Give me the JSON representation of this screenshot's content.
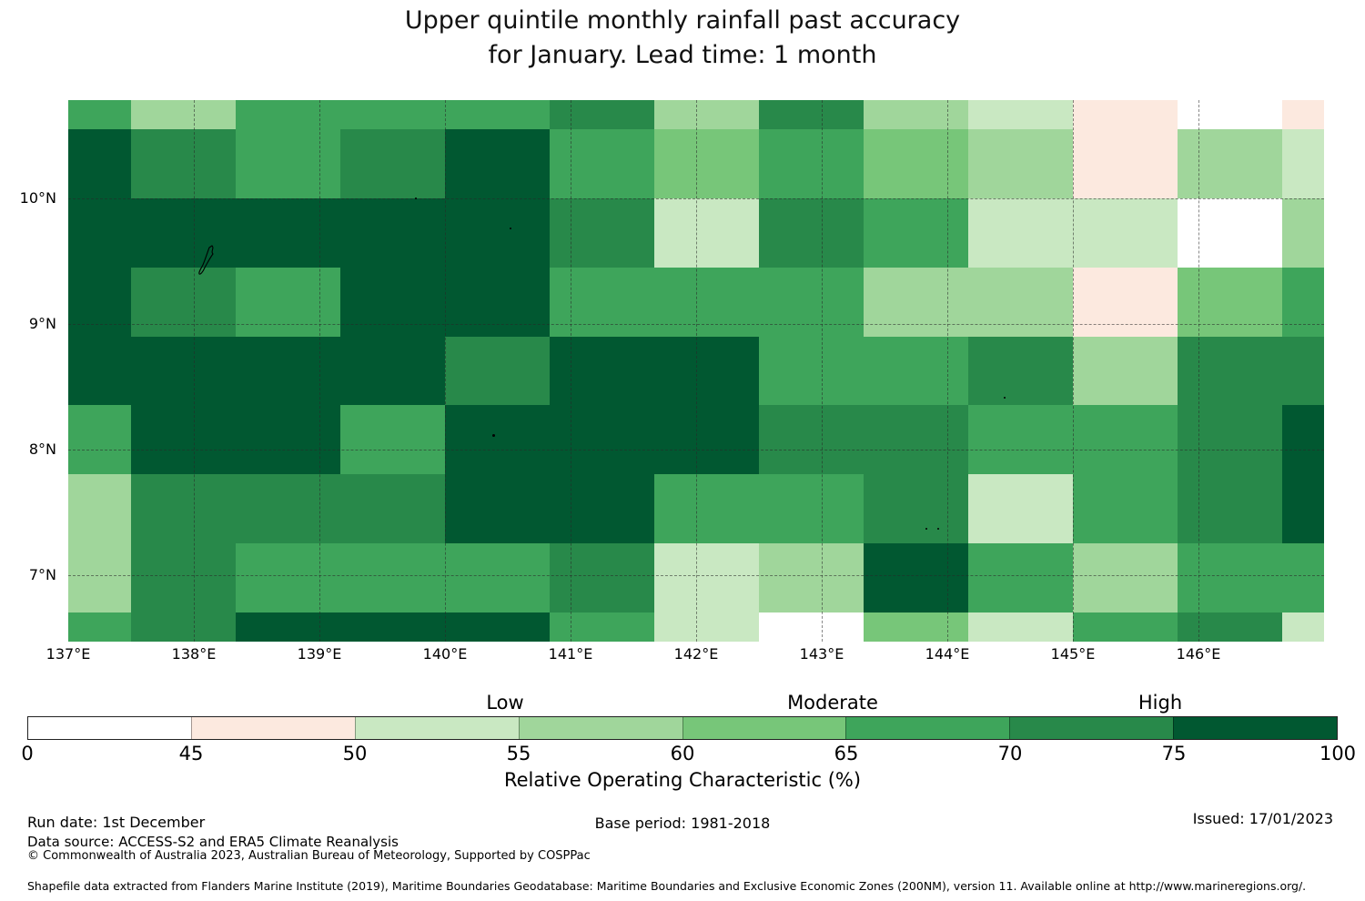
{
  "title": {
    "line1": "Upper quintile monthly rainfall past accuracy",
    "line2": "for January. Lead time: 1 month"
  },
  "chart_data": {
    "type": "heatmap",
    "title": "Upper quintile monthly rainfall past accuracy for January. Lead time: 1 month",
    "x_axis": {
      "ticks": [
        {
          "label": "137°E",
          "lon": 137
        },
        {
          "label": "138°E",
          "lon": 138
        },
        {
          "label": "139°E",
          "lon": 139
        },
        {
          "label": "140°E",
          "lon": 140
        },
        {
          "label": "141°E",
          "lon": 141
        },
        {
          "label": "142°E",
          "lon": 142
        },
        {
          "label": "143°E",
          "lon": 143
        },
        {
          "label": "144°E",
          "lon": 144
        },
        {
          "label": "145°E",
          "lon": 145
        },
        {
          "label": "146°E",
          "lon": 146
        }
      ]
    },
    "y_axis": {
      "ticks": [
        {
          "label": "10°N",
          "lat": 10
        },
        {
          "label": "9°N",
          "lat": 9
        },
        {
          "label": "8°N",
          "lat": 8
        },
        {
          "label": "7°N",
          "lat": 7
        }
      ]
    },
    "grid_on": true,
    "map_extent": {
      "lon_min": 137.0,
      "lon_max": 147.0,
      "lat_min": 6.47,
      "lat_max": 10.78
    },
    "lon_edges": [
      137.0,
      137.5,
      138.33,
      139.17,
      140.0,
      140.83,
      141.67,
      142.5,
      143.33,
      144.17,
      145.0,
      145.83,
      146.67,
      147.0
    ],
    "lat_edges": [
      10.78,
      10.55,
      10.0,
      9.45,
      8.9,
      8.35,
      7.8,
      7.25,
      6.7,
      6.47
    ],
    "legend_buckets": {
      "W": {
        "range": "0-45",
        "value": 40,
        "color": "#ffffff"
      },
      "PK": {
        "range": "45-50",
        "value": 47.5,
        "color": "#fce9df"
      },
      "LG": {
        "range": "50-55",
        "value": 52.5,
        "color": "#c9e8c2"
      },
      "PG": {
        "range": "55-60",
        "value": 57.5,
        "color": "#a0d69b"
      },
      "MG": {
        "range": "60-65",
        "value": 62.5,
        "color": "#77c679"
      },
      "G": {
        "range": "65-70",
        "value": 67.5,
        "color": "#3ea55b"
      },
      "DG": {
        "range": "70-75",
        "value": 72.5,
        "color": "#28894a"
      },
      "XG": {
        "range": "75-100",
        "value": 85,
        "color": "#015831"
      }
    },
    "units": "%",
    "grid": [
      [
        "G",
        "PG",
        "G",
        "G",
        "G",
        "DG",
        "PG",
        "DG",
        "PG",
        "LG",
        "PK",
        "W",
        "PK"
      ],
      [
        "XG",
        "DG",
        "G",
        "DG",
        "XG",
        "G",
        "MG",
        "G",
        "MG",
        "PG",
        "PK",
        "PG",
        "LG"
      ],
      [
        "XG",
        "XG",
        "XG",
        "XG",
        "XG",
        "DG",
        "LG",
        "DG",
        "G",
        "LG",
        "LG",
        "W",
        "PG"
      ],
      [
        "XG",
        "DG",
        "G",
        "XG",
        "XG",
        "G",
        "G",
        "G",
        "PG",
        "PG",
        "PK",
        "MG",
        "G"
      ],
      [
        "XG",
        "XG",
        "XG",
        "XG",
        "DG",
        "XG",
        "XG",
        "G",
        "G",
        "DG",
        "PG",
        "DG",
        "DG"
      ],
      [
        "G",
        "XG",
        "XG",
        "G",
        "XG",
        "XG",
        "XG",
        "DG",
        "DG",
        "G",
        "G",
        "DG",
        "XG"
      ],
      [
        "PG",
        "DG",
        "DG",
        "DG",
        "XG",
        "XG",
        "G",
        "G",
        "DG",
        "LG",
        "G",
        "DG",
        "XG"
      ],
      [
        "PG",
        "DG",
        "G",
        "G",
        "G",
        "DG",
        "LG",
        "PG",
        "XG",
        "G",
        "PG",
        "G",
        "G"
      ],
      [
        "G",
        "DG",
        "XG",
        "XG",
        "XG",
        "G",
        "LG",
        "W",
        "MG",
        "LG",
        "G",
        "DG",
        "LG"
      ]
    ],
    "islands": [
      {
        "lon": 139.77,
        "lat": 10.0,
        "size": 2
      },
      {
        "lon": 140.52,
        "lat": 9.76,
        "size": 2
      },
      {
        "lon": 140.39,
        "lat": 8.11,
        "size": 3
      },
      {
        "lon": 143.83,
        "lat": 7.37,
        "size": 2
      },
      {
        "lon": 143.93,
        "lat": 7.37,
        "size": 2
      },
      {
        "lon": 144.46,
        "lat": 8.41,
        "size": 2
      }
    ],
    "colorbar": {
      "ticks": [
        "0",
        "45",
        "50",
        "55",
        "60",
        "65",
        "70",
        "75",
        "100"
      ],
      "segment_order": [
        "W",
        "PK",
        "LG",
        "PG",
        "MG",
        "G",
        "DG",
        "XG"
      ],
      "categories": [
        {
          "label": "Low",
          "at_tick": "55"
        },
        {
          "label": "Moderate",
          "at_tick": "65"
        },
        {
          "label": "High",
          "at_tick": "75"
        }
      ],
      "axis_label": "Relative Operating Characteristic (%)",
      "legend_position": "bottom"
    }
  },
  "footer": {
    "run_date": "Run date: 1st December",
    "data_source": "Data source: ACCESS-S2 and ERA5 Climate Reanalysis",
    "copyright": "© Commonwealth of Australia 2023, Australian Bureau of Meteorology, Supported by COSPPac",
    "base_period": "Base period: 1981-2018",
    "issued": "Issued: 17/01/2023",
    "shapefile_note": "Shapefile data extracted from Flanders Marine Institute (2019), Maritime Boundaries Geodatabase: Maritime Boundaries and Exclusive Economic Zones (200NM), version 11. Available online at http://www.marineregions.org/."
  }
}
